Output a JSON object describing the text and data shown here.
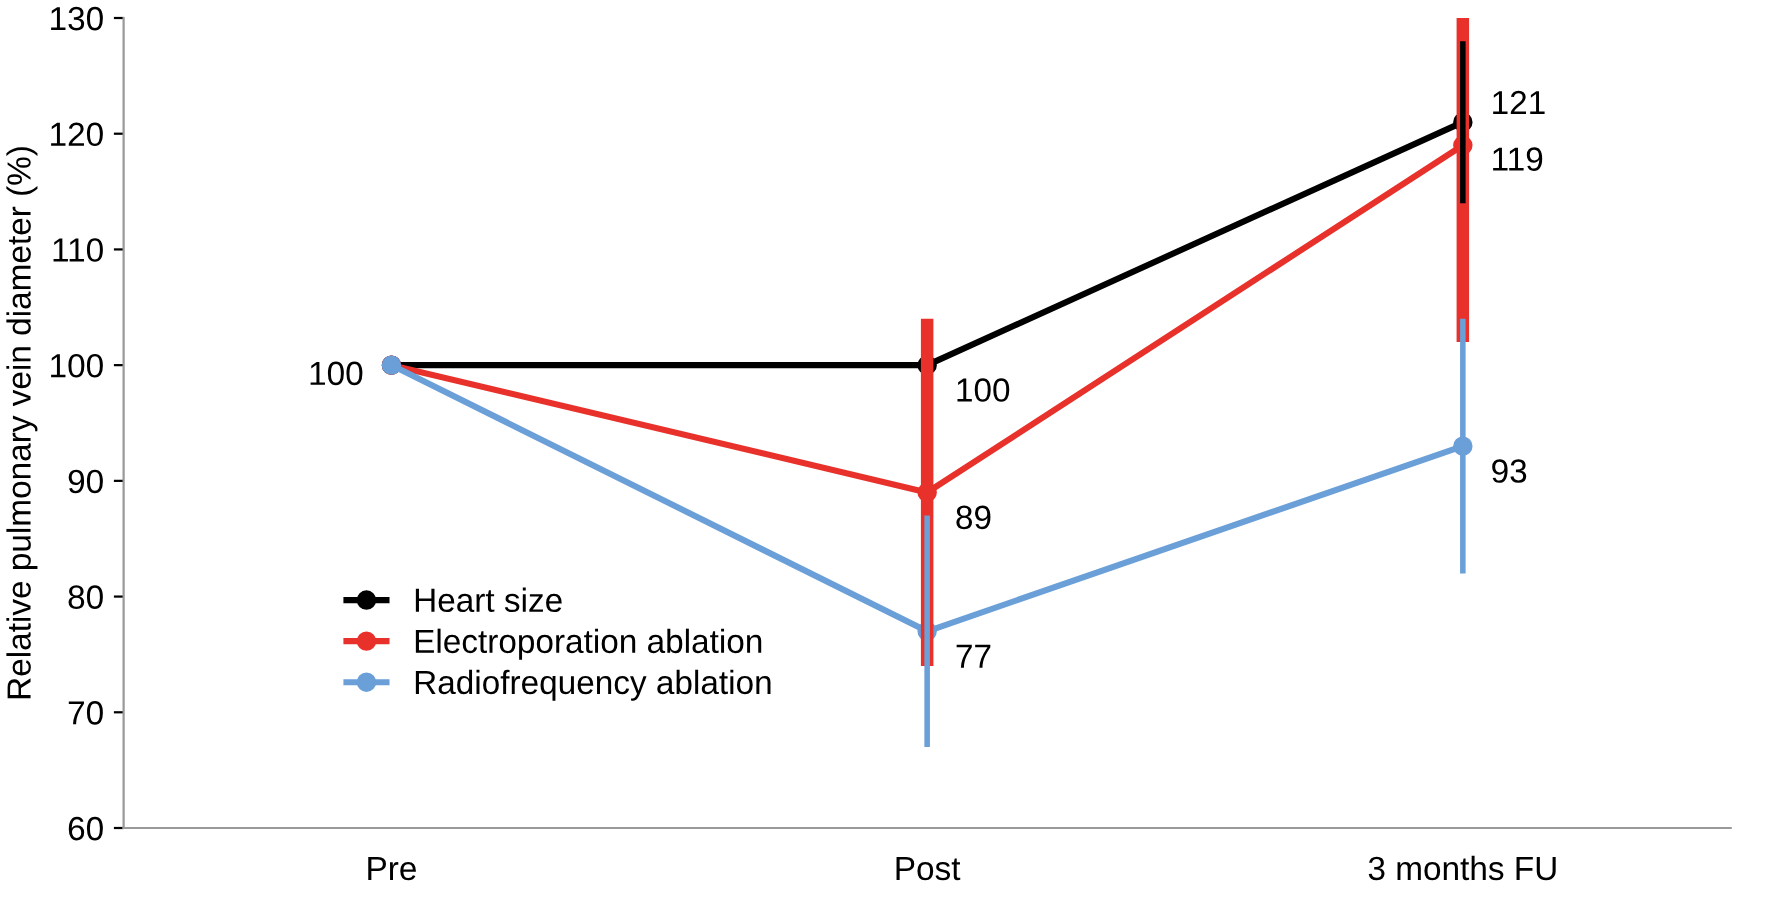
{
  "chart_data": {
    "type": "line",
    "ylabel": "Relative pulmonary vein diameter (%)",
    "categories": [
      "Pre",
      "Post",
      "3 months FU"
    ],
    "series": [
      {
        "name": "Heart size",
        "color": "#000000",
        "values": [
          100,
          100,
          121
        ],
        "errors": [
          null,
          null,
          [
            114,
            128
          ]
        ],
        "value_labels": [
          "100",
          "100",
          "121"
        ]
      },
      {
        "name": "Electroporation ablation",
        "color": "#e8312a",
        "values": [
          100,
          89,
          119
        ],
        "errors": [
          null,
          [
            74,
            104
          ],
          [
            102,
            130
          ]
        ],
        "value_labels": [
          null,
          "89",
          "119"
        ]
      },
      {
        "name": "Radiofrequency ablation",
        "color": "#6a9fd8",
        "values": [
          100,
          77,
          93
        ],
        "errors": [
          null,
          [
            67,
            87
          ],
          [
            82,
            104
          ]
        ],
        "value_labels": [
          null,
          "77",
          "93"
        ]
      }
    ],
    "ylim": [
      60,
      130
    ],
    "yticks": [
      60,
      70,
      80,
      90,
      100,
      110,
      120,
      130
    ],
    "grid": false,
    "legend": "bottom left",
    "marker": "circle",
    "line_style": "solid"
  }
}
